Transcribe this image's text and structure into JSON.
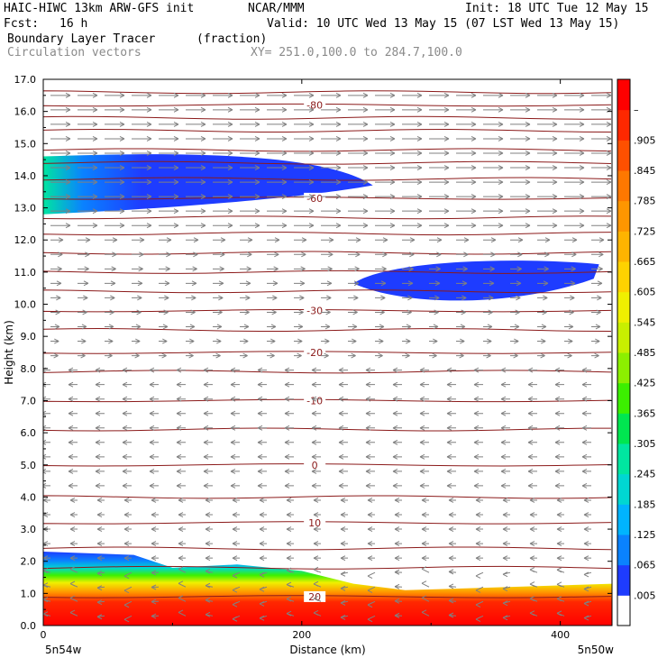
{
  "header": {
    "model": "HAIC-HIWC 13km ARW-GFS init",
    "org": "NCAR/MMM",
    "init": "Init: 18 UTC Tue 12 May 15",
    "fcst_label": "Fcst:",
    "fcst_value": "16 h",
    "valid": "Valid: 10 UTC Wed 13 May 15 (07 LST Wed 13 May 15)",
    "field_name": "Boundary Layer Tracer",
    "field_units": "(fraction)",
    "vector_field": "Circulation vectors",
    "xy_range": "XY= 251.0,100.0 to 284.7,100.0"
  },
  "chart_data": {
    "type": "heatmap",
    "xlabel": "Distance (km)",
    "ylabel": "Height (km)",
    "xlim": [
      0,
      440
    ],
    "ylim": [
      0,
      17
    ],
    "x_ticks": [
      0,
      200,
      400
    ],
    "y_ticks": [
      "0.0",
      "1.0",
      "2.0",
      "3.0",
      "4.0",
      "5.0",
      "6.0",
      "7.0",
      "8.0",
      "9.0",
      "10.0",
      "11.0",
      "12.0",
      "13.0",
      "14.0",
      "15.0",
      "16.0",
      "17.0"
    ],
    "x_end_labels": {
      "left": "5n54w",
      "right": "5n50w"
    },
    "colorbar": {
      "labels": [
        ".005",
        ".065",
        ".125",
        ".185",
        ".245",
        ".305",
        ".365",
        ".425",
        ".485",
        ".545",
        ".605",
        ".665",
        ".725",
        ".785",
        ".845",
        ".905",
        "–"
      ],
      "colors": [
        "#ffffff",
        "#1e3cff",
        "#0a82ff",
        "#00b4ff",
        "#00d7d2",
        "#00e6a0",
        "#00e650",
        "#3cf000",
        "#8cf000",
        "#c8f000",
        "#f0f000",
        "#ffd200",
        "#ffb400",
        "#ff9600",
        "#ff7800",
        "#ff5000",
        "#ff2800",
        "#ff0000"
      ]
    },
    "temperature_contours": [
      {
        "label": "20",
        "label_x": 210,
        "height": 0.9
      },
      {
        "label": "10",
        "label_x": 210,
        "height": 3.2
      },
      {
        "label": "0",
        "label_x": 210,
        "height": 5.0
      },
      {
        "label": "-10",
        "label_x": 210,
        "height": 7.0
      },
      {
        "label": "-20",
        "label_x": 210,
        "height": 8.5
      },
      {
        "label": "-30",
        "label_x": 210,
        "height": 9.8
      },
      {
        "label": "-60",
        "label_x": 210,
        "height": 13.3
      },
      {
        "label": "-80",
        "label_x": 210,
        "height": 16.2
      }
    ],
    "tracer_regions": [
      {
        "name": "boundary layer",
        "x_range": [
          0,
          440
        ],
        "top_height_km": [
          [
            0,
            2.3
          ],
          [
            70,
            2.2
          ],
          [
            100,
            1.8
          ],
          [
            150,
            1.9
          ],
          [
            200,
            1.7
          ],
          [
            240,
            1.3
          ],
          [
            280,
            1.1
          ],
          [
            440,
            1.3
          ]
        ]
      },
      {
        "name": "upper plume",
        "x_range": [
          0,
          255
        ],
        "height_range_km": [
          12.8,
          14.6
        ]
      },
      {
        "name": "mid plume",
        "x_range": [
          240,
          430
        ],
        "height_range_km": [
          10.0,
          11.3
        ]
      }
    ]
  }
}
